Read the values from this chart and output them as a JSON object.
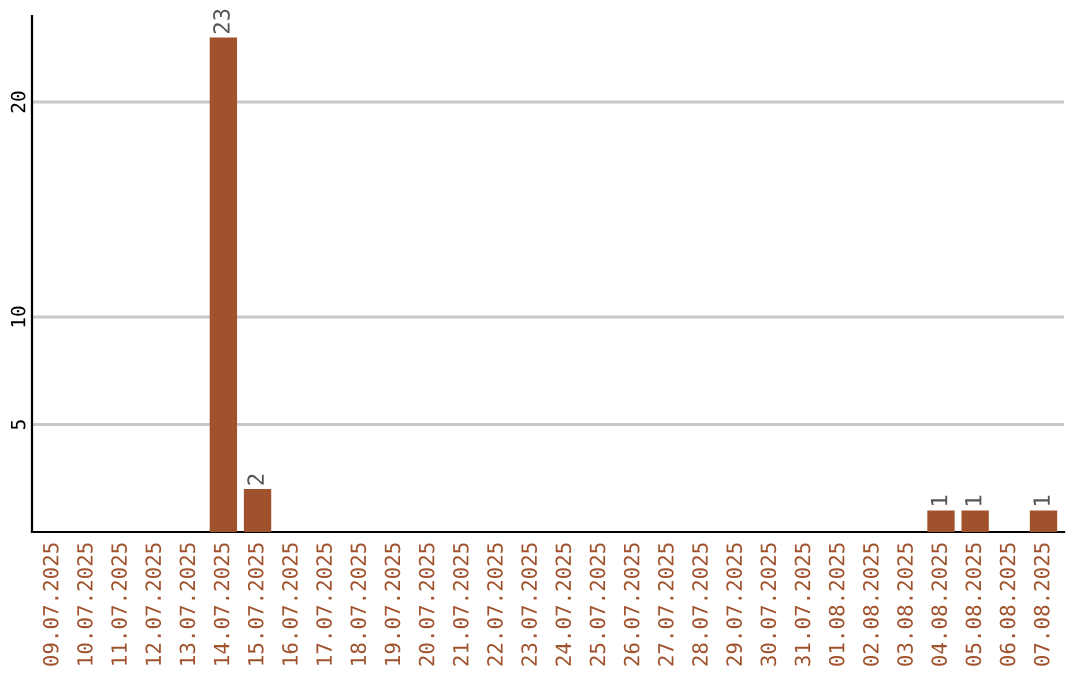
{
  "chart_data": {
    "type": "bar",
    "categories": [
      "09.07.2025",
      "10.07.2025",
      "11.07.2025",
      "12.07.2025",
      "13.07.2025",
      "14.07.2025",
      "15.07.2025",
      "16.07.2025",
      "17.07.2025",
      "18.07.2025",
      "19.07.2025",
      "20.07.2025",
      "21.07.2025",
      "22.07.2025",
      "23.07.2025",
      "24.07.2025",
      "25.07.2025",
      "26.07.2025",
      "27.07.2025",
      "28.07.2025",
      "29.07.2025",
      "30.07.2025",
      "31.07.2025",
      "01.08.2025",
      "02.08.2025",
      "03.08.2025",
      "04.08.2025",
      "05.08.2025",
      "06.08.2025",
      "07.08.2025"
    ],
    "values": [
      0,
      0,
      0,
      0,
      0,
      23,
      2,
      0,
      0,
      0,
      0,
      0,
      0,
      0,
      0,
      0,
      0,
      0,
      0,
      0,
      0,
      0,
      0,
      0,
      0,
      0,
      1,
      1,
      0,
      1
    ],
    "value_labels": [
      null,
      null,
      null,
      null,
      null,
      "23",
      "2",
      null,
      null,
      null,
      null,
      null,
      null,
      null,
      null,
      null,
      null,
      null,
      null,
      null,
      null,
      null,
      null,
      null,
      null,
      null,
      "1",
      "1",
      null,
      "1"
    ],
    "color": "#a0522d",
    "ylim": [
      0,
      24
    ],
    "yticks": [
      5,
      10,
      20
    ],
    "grid": "y",
    "legend": false
  }
}
